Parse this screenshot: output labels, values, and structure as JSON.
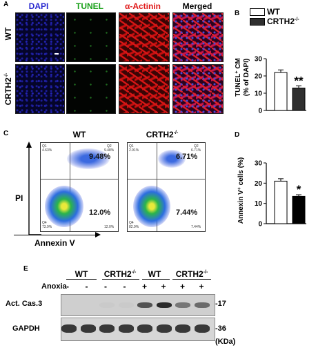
{
  "panel_a": {
    "letter": "A",
    "columns": [
      {
        "label": "DAPI",
        "color": "#2a2ad0"
      },
      {
        "label": "TUNEL",
        "color": "#18a018"
      },
      {
        "label": "α-Actinin",
        "color": "#e01818"
      },
      {
        "label": "Merged",
        "color": "#000000"
      }
    ],
    "rows": [
      {
        "label": "WT"
      },
      {
        "label": "CRTH2",
        "sup": "-/-"
      }
    ]
  },
  "panel_b": {
    "letter": "B",
    "legend": [
      {
        "label": "WT",
        "fill": "#ffffff"
      },
      {
        "label": "CRTH2",
        "sup": "-/-",
        "fill": "#2f2f2f"
      }
    ],
    "ylabel_line1": "TUNEL",
    "ylabel_sup": "+",
    "ylabel_line1b": " CM",
    "ylabel_line2": "(% of DAPI)",
    "significance": "**",
    "chart_data": {
      "type": "bar",
      "categories": [
        "WT",
        "CRTH2-/-"
      ],
      "values": [
        22,
        13
      ],
      "errors": [
        1.5,
        1.3
      ],
      "ylim": [
        0,
        30
      ],
      "yticks": [
        "0",
        "10",
        "20",
        "30"
      ]
    }
  },
  "panel_c": {
    "letter": "C",
    "titles": [
      {
        "label": "WT"
      },
      {
        "label": "CRTH2",
        "sup": "-/-"
      }
    ],
    "ylabel": "PI",
    "xlabel": "Annexin  V",
    "plots": [
      {
        "q1": "Q1",
        "q1v": "4.63%",
        "q2": "Q2",
        "q2v": "9.48%",
        "q3v": "12.0%",
        "q4": "Q4",
        "q4v": "73.9%",
        "big_tr": "9.48%",
        "big_br": "12.0%"
      },
      {
        "q1": "Q1",
        "q1v": "2.91%",
        "q2": "Q2",
        "q2v": "6.71%",
        "q3v": "7.44%",
        "q4": "Q4",
        "q4v": "82.9%",
        "big_tr": "6.71%",
        "big_br": "7.44%"
      }
    ]
  },
  "panel_d": {
    "letter": "D",
    "ylabel": "Annexin V",
    "ylabel_sup": "+",
    "ylabel_tail": " cells (%)",
    "significance": "*",
    "chart_data": {
      "type": "bar",
      "categories": [
        "WT",
        "CRTH2-/-"
      ],
      "values": [
        21,
        13.5
      ],
      "errors": [
        1.2,
        0.8
      ],
      "ylim": [
        0,
        30
      ],
      "yticks": [
        "0",
        "10",
        "20",
        "30"
      ]
    }
  },
  "panel_e": {
    "letter": "E",
    "groups": [
      {
        "label": "WT"
      },
      {
        "label": "CRTH2",
        "sup": "-/-"
      },
      {
        "label": "WT"
      },
      {
        "label": "CRTH2",
        "sup": "-/-"
      }
    ],
    "anoxia_label": "Anoxia",
    "anoxia": [
      "-",
      "-",
      "-",
      "-",
      "+",
      "+",
      "+",
      "+"
    ],
    "blot_labels": [
      "Act. Cas.3",
      "GAPDH"
    ],
    "markers": [
      "17",
      "36"
    ],
    "unit": "(KDa)",
    "cas3_intensity": [
      0.0,
      0.0,
      0.02,
      0.03,
      0.75,
      0.9,
      0.6,
      0.65
    ],
    "gapdh_intensity": [
      0.85,
      0.85,
      0.85,
      0.85,
      0.85,
      0.85,
      0.85,
      0.85
    ]
  }
}
